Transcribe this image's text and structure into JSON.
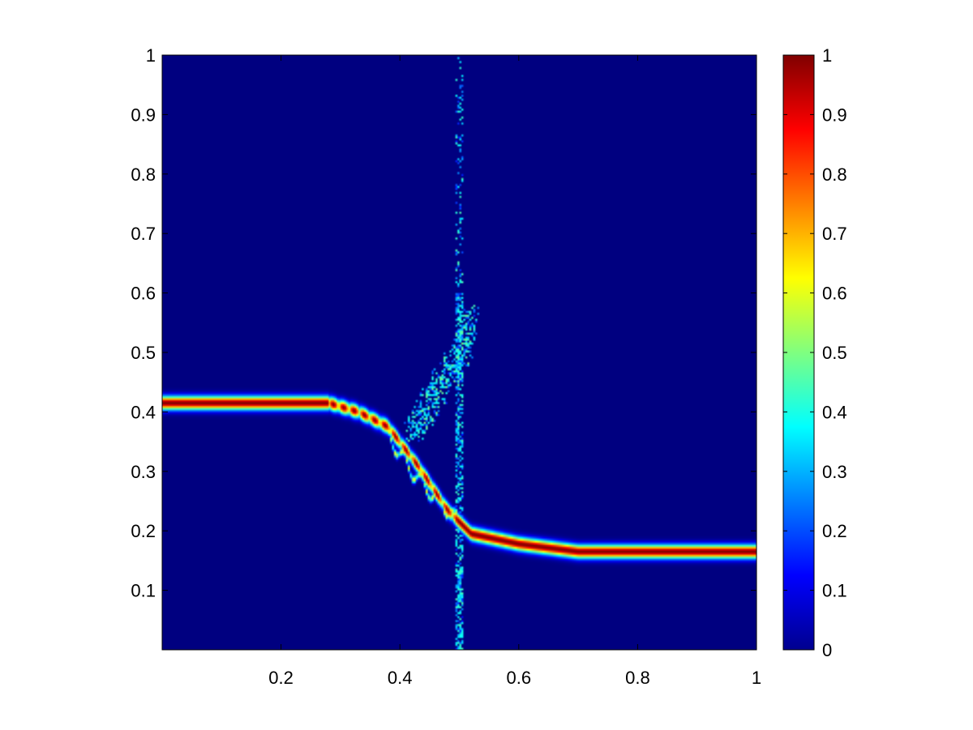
{
  "chart_data": {
    "type": "heatmap",
    "title": "",
    "xlabel": "",
    "ylabel": "",
    "xlim": [
      0,
      1
    ],
    "ylim": [
      0,
      1
    ],
    "x_ticks": [
      0.2,
      0.4,
      0.6,
      0.8,
      1
    ],
    "x_tick_labels": [
      "0.2",
      "0.4",
      "0.6",
      "0.8",
      "1"
    ],
    "y_ticks": [
      0.1,
      0.2,
      0.3,
      0.4,
      0.5,
      0.6,
      0.7,
      0.8,
      0.9,
      1
    ],
    "y_tick_labels": [
      "0.1",
      "0.2",
      "0.3",
      "0.4",
      "0.5",
      "0.6",
      "0.7",
      "0.8",
      "0.9",
      "1"
    ],
    "colormap": "jet",
    "background_color": "#00008f",
    "colorbar": {
      "range": [
        0,
        1
      ],
      "ticks": [
        0,
        0.1,
        0.2,
        0.3,
        0.4,
        0.5,
        0.6,
        0.7,
        0.8,
        0.9,
        1
      ],
      "tick_labels": [
        "0",
        "0.1",
        "0.2",
        "0.3",
        "0.4",
        "0.5",
        "0.6",
        "0.7",
        "0.8",
        "0.9",
        "1"
      ]
    },
    "features": [
      {
        "name": "main band",
        "points": [
          [
            0,
            0.415
          ],
          [
            0.28,
            0.415
          ],
          [
            0.33,
            0.4
          ],
          [
            0.38,
            0.375
          ],
          [
            0.43,
            0.31
          ],
          [
            0.48,
            0.235
          ],
          [
            0.52,
            0.195
          ],
          [
            0.6,
            0.178
          ],
          [
            0.7,
            0.165
          ],
          [
            1.0,
            0.165
          ]
        ],
        "peak": 1.0,
        "half_width": 0.012
      },
      {
        "name": "oscillating branch",
        "points": [
          [
            0.38,
            0.36
          ],
          [
            0.42,
            0.3
          ],
          [
            0.46,
            0.255
          ],
          [
            0.5,
            0.215
          ]
        ],
        "peak": 0.65,
        "half_width": 0.006
      },
      {
        "name": "vertical scatter",
        "x": 0.5,
        "y_range": [
          0.0,
          1.0
        ],
        "peak": 0.45
      },
      {
        "name": "diagonal scatter",
        "points": [
          [
            0.42,
            0.37
          ],
          [
            0.5,
            0.49
          ],
          [
            0.52,
            0.56
          ]
        ],
        "peak": 0.5
      }
    ]
  }
}
